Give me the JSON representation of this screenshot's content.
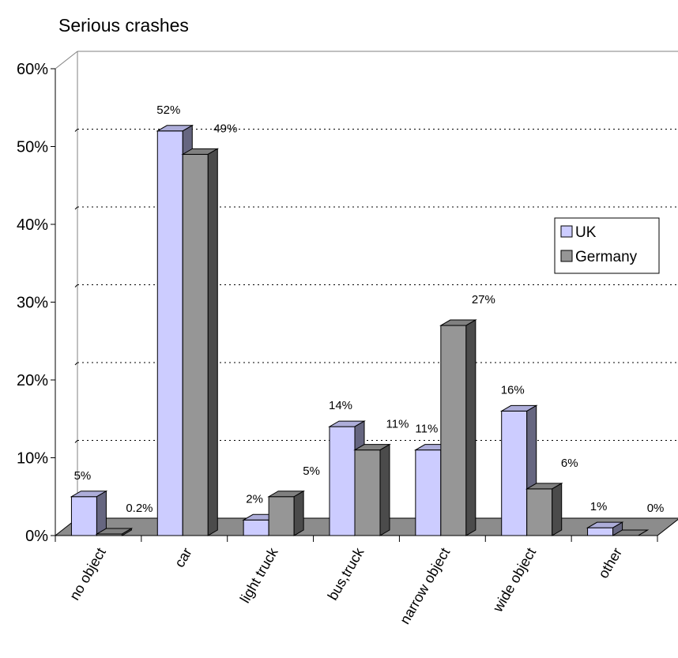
{
  "chart_data": {
    "type": "bar",
    "title": "Serious crashes",
    "xlabel": "",
    "ylabel": "",
    "ylim": [
      0,
      60
    ],
    "y_ticks": [
      "0%",
      "10%",
      "20%",
      "30%",
      "40%",
      "50%",
      "60%"
    ],
    "grid": true,
    "legend_position": "right",
    "categories": [
      "no object",
      "car",
      "light truck",
      "bus,truck",
      "narrow object",
      "wide object",
      "other"
    ],
    "series": [
      {
        "name": "UK",
        "color": "#ccccff",
        "values": [
          5,
          52,
          2,
          14,
          11,
          16,
          1
        ],
        "labels": [
          "5%",
          "52%",
          "2%",
          "14%",
          "11%",
          "16%",
          "1%"
        ]
      },
      {
        "name": "Germany",
        "color": "#969696",
        "values": [
          0.2,
          49,
          5,
          11,
          27,
          6,
          0
        ],
        "labels": [
          "0.2%",
          "49%",
          "5%",
          "11%",
          "27%",
          "6%",
          "0%"
        ]
      }
    ]
  }
}
